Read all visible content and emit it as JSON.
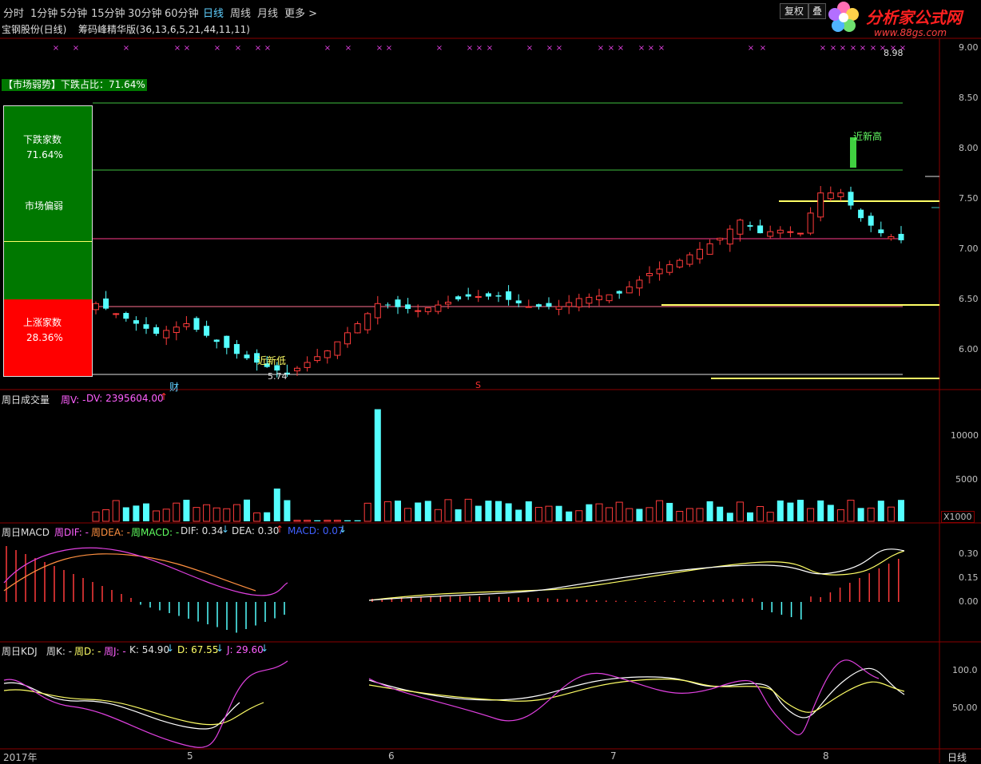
{
  "toolbar": {
    "periods": [
      "分时",
      "1分钟",
      "5分钟",
      "15分钟",
      "30分钟",
      "60分钟",
      "日线",
      "周线",
      "月线",
      "更多 >"
    ],
    "active_index": 6,
    "fuquan_label": "复权",
    "overlay_label": "叠"
  },
  "logo": {
    "text": "分析家公式网",
    "url_text": "www.88gs.com"
  },
  "main": {
    "stock_title": "宝钢股份(日线)",
    "indicator_title": "筹码峰精华版(36,13,6,5,21,44,11,11)",
    "market_badge": "【市场弱势】下跌占比：71.64%",
    "down_label": "下跌家数",
    "down_pct": "71.64%",
    "middle_label": "市场偏弱",
    "up_label": "上涨家数",
    "up_pct": "28.36%",
    "price_axis": [
      "9.00",
      "8.50",
      "8.00",
      "7.50",
      "7.00",
      "6.50",
      "6.00"
    ],
    "high_label": "8.98",
    "low_label": "5.74",
    "new_low_label": "近新低",
    "new_high_label": "近新高",
    "marker_cai": "财",
    "marker_s": "S",
    "x_markers": "×"
  },
  "volume": {
    "title": "周日成交量",
    "v_label": "周V: -",
    "dv_label": "DV: 2395604.00",
    "axis": [
      "10000",
      "5000"
    ],
    "unit": "X1000"
  },
  "macd": {
    "title": "周日MACD",
    "dif_label": "周DIF: -",
    "dea_label": "周DEA: -",
    "macd_label": "周MACD: -",
    "dif_value": "DIF: 0.34",
    "dea_value": "DEA: 0.30",
    "macd_value": "MACD: 0.07",
    "axis": [
      "0.30",
      "0.15",
      "0.00"
    ]
  },
  "kdj": {
    "title": "周日KDJ",
    "k_label": "周K: -",
    "d_label": "周D: -",
    "j_label": "周J: -",
    "k_value": "K: 54.90",
    "d_value": "D: 67.55",
    "j_value": "J: 29.60",
    "axis": [
      "100.0",
      "50.00"
    ]
  },
  "time_axis": {
    "labels": [
      "2017年",
      "5",
      "6",
      "7",
      "8"
    ],
    "period": "日线"
  },
  "colors": {
    "up": "#ff3b3b",
    "down": "#54ffff",
    "grid": "#8a0000",
    "magenta": "#e040e0",
    "yellow": "#ffff66"
  }
}
